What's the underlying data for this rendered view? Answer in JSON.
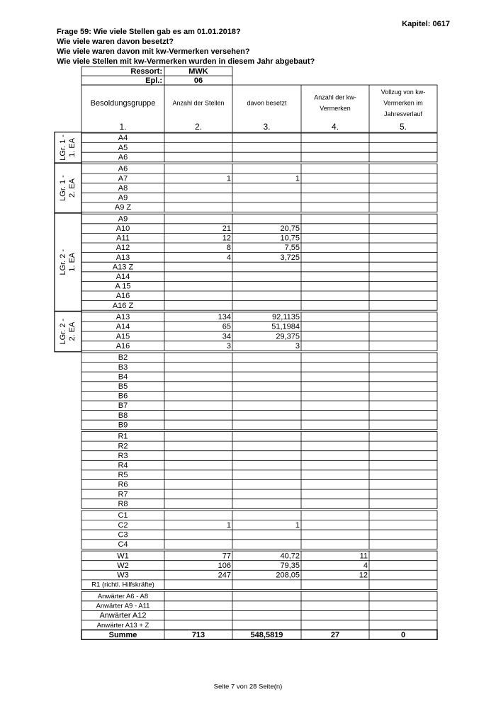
{
  "header": {
    "chapter": "Kapitel: 0617",
    "questions": [
      "Frage 59:  Wie viele Stellen gab es am 01.01.2018?",
      "Wie viele waren davon besetzt?",
      "Wie viele waren davon mit kw-Vermerken versehen?",
      "Wie viele Stellen mit kw-Vermerken wurden in diesem Jahr abgebaut?"
    ],
    "ressort_label": "Ressort:",
    "ressort": "MWK",
    "epl_label": "Epl.:",
    "epl": "06"
  },
  "table": {
    "columns": [
      {
        "label": [
          "Besoldungsgruppe"
        ],
        "number": "1."
      },
      {
        "label": [
          "Anzahl der Stellen"
        ],
        "number": "2."
      },
      {
        "label": [
          "davon besetzt"
        ],
        "number": "3."
      },
      {
        "label": [
          "Anzahl der kw-",
          "Vermerken"
        ],
        "number": "4."
      },
      {
        "label": [
          "Vollzug von kw-",
          "Vermerken im",
          "Jahresverlauf"
        ],
        "number": "5."
      }
    ],
    "groups": [
      {
        "side_label": [
          "LGr. 1 -",
          "1. EA"
        ],
        "rows": [
          {
            "name": "A4"
          },
          {
            "name": "A5"
          },
          {
            "name": "A6"
          }
        ]
      },
      {
        "side_label": [
          "LGr. 1 -",
          "2. EA"
        ],
        "rows": [
          {
            "name": "A6"
          },
          {
            "name": "A7",
            "stellen": 1,
            "besetzt": 1
          },
          {
            "name": "A8"
          },
          {
            "name": "A9"
          },
          {
            "name": "A9 Z"
          }
        ]
      },
      {
        "side_label": [
          "LGr. 2 -",
          "1. EA"
        ],
        "rows": [
          {
            "name": "A9"
          },
          {
            "name": "A10",
            "stellen": 21,
            "besetzt": "20,75"
          },
          {
            "name": "A11",
            "stellen": 12,
            "besetzt": "10,75"
          },
          {
            "name": "A12",
            "stellen": 8,
            "besetzt": "7,55"
          },
          {
            "name": "A13",
            "stellen": 4,
            "besetzt": "3,725"
          },
          {
            "name": "A13 Z"
          },
          {
            "name": "A14"
          },
          {
            "name": "A 15"
          },
          {
            "name": "A16"
          },
          {
            "name": "A16 Z"
          }
        ]
      },
      {
        "side_label": [
          "LGr. 2 -",
          "2. EA"
        ],
        "rows": [
          {
            "name": "A13",
            "stellen": 134,
            "besetzt": "92,1135"
          },
          {
            "name": "A14",
            "stellen": 65,
            "besetzt": "51,1984"
          },
          {
            "name": "A15",
            "stellen": 34,
            "besetzt": "29,375"
          },
          {
            "name": "A16",
            "stellen": 3,
            "besetzt": 3
          }
        ]
      },
      {
        "rows": [
          {
            "name": "B2"
          },
          {
            "name": "B3"
          },
          {
            "name": "B4"
          },
          {
            "name": "B5"
          },
          {
            "name": "B6"
          },
          {
            "name": "B7"
          },
          {
            "name": "B8"
          },
          {
            "name": "B9"
          }
        ]
      },
      {
        "rows": [
          {
            "name": "R1"
          },
          {
            "name": "R2"
          },
          {
            "name": "R3"
          },
          {
            "name": "R4"
          },
          {
            "name": "R5"
          },
          {
            "name": "R6"
          },
          {
            "name": "R7"
          },
          {
            "name": "R8"
          }
        ]
      },
      {
        "rows": [
          {
            "name": "C1"
          },
          {
            "name": "C2",
            "stellen": 1,
            "besetzt": 1
          },
          {
            "name": "C3"
          },
          {
            "name": "C4"
          }
        ]
      },
      {
        "rows": [
          {
            "name": "W1",
            "stellen": 77,
            "besetzt": "40,72",
            "kw": 11
          },
          {
            "name": "W2",
            "stellen": 106,
            "besetzt": "79,35",
            "kw": 4
          },
          {
            "name": "W3",
            "stellen": 247,
            "besetzt": "208,05",
            "kw": 12
          },
          {
            "name": "R1 (richtl. Hilfskräfte)"
          }
        ]
      },
      {
        "rows": [
          {
            "name": "Anwärter A6 - A8"
          },
          {
            "name": "Anwärter A9 - A11"
          },
          {
            "name": "Anwärter A12"
          },
          {
            "name": "Anwärter A13 + Z"
          }
        ]
      }
    ],
    "total": {
      "name": "Summe",
      "stellen": 713,
      "besetzt": "548,5819",
      "kw": 27,
      "vollzug": 0
    }
  },
  "footer": "Seite 7 von 28 Seite(n)"
}
